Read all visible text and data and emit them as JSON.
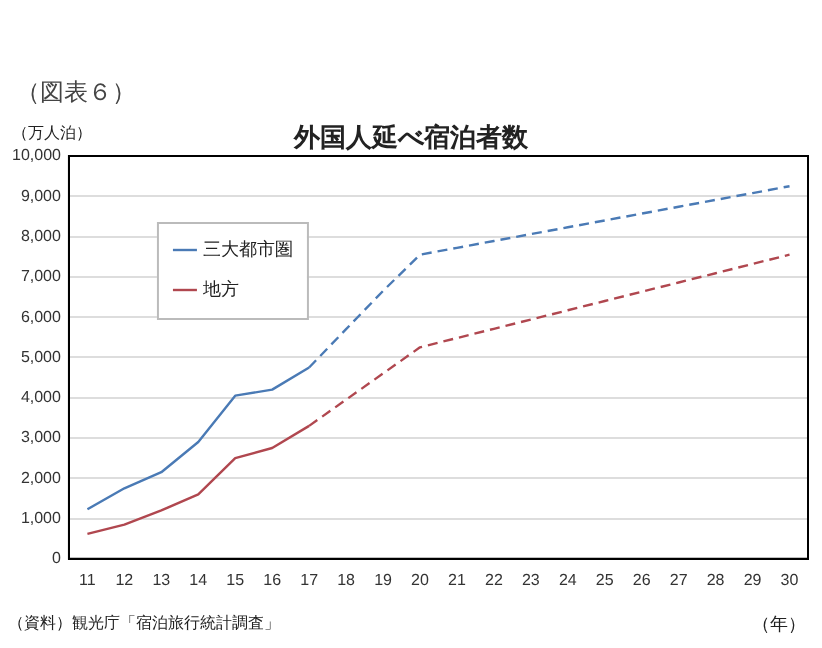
{
  "chart_data": {
    "type": "line",
    "title": "外国人延べ宿泊者数",
    "ylabel": "（万人泊）",
    "xlabel": "（年）",
    "annotations": [
      "（図表６）",
      "（資料）観光庁「宿泊旅行統計調査」"
    ],
    "categories": [
      "11",
      "12",
      "13",
      "14",
      "15",
      "16",
      "17",
      "18",
      "19",
      "20",
      "21",
      "22",
      "23",
      "24",
      "25",
      "26",
      "27",
      "28",
      "29",
      "30"
    ],
    "series": [
      {
        "name": "三大都市圏",
        "color": "#4a7ab5",
        "line_style": "solid",
        "values": [
          1230,
          1750,
          2150,
          2900,
          4050,
          4200,
          4750,
          null,
          null,
          null,
          null,
          null,
          null,
          null,
          null,
          null,
          null,
          null,
          null,
          null
        ]
      },
      {
        "name": "地方",
        "color": "#b0474f",
        "line_style": "solid",
        "values": [
          620,
          850,
          1200,
          1600,
          2500,
          2750,
          3300,
          null,
          null,
          null,
          null,
          null,
          null,
          null,
          null,
          null,
          null,
          null,
          null,
          null
        ]
      },
      {
        "color": "#4a7ab5",
        "line_style": "dashed",
        "values": [
          null,
          null,
          null,
          null,
          null,
          null,
          4750,
          5700,
          6650,
          7550,
          7720,
          7890,
          8060,
          8230,
          8400,
          8570,
          8740,
          8910,
          9080,
          9250
        ]
      },
      {
        "color": "#b0474f",
        "line_style": "dashed",
        "values": [
          null,
          null,
          null,
          null,
          null,
          null,
          3300,
          3950,
          4600,
          5250,
          5480,
          5710,
          5940,
          6170,
          6400,
          6630,
          6860,
          7090,
          7320,
          7550
        ]
      }
    ],
    "ylim": [
      0,
      10000
    ],
    "yticks": [
      0,
      {
        "value": 1000,
        "label": "1,000"
      },
      {
        "value": 2000,
        "label": "2,000"
      },
      {
        "value": 3000,
        "label": "3,000"
      },
      {
        "value": 4000,
        "label": "4,000"
      },
      {
        "value": 5000,
        "label": "5,000"
      },
      {
        "value": 6000,
        "label": "6,000"
      },
      {
        "value": 7000,
        "label": "7,000"
      },
      {
        "value": 8000,
        "label": "8,000"
      },
      {
        "value": 9000,
        "label": "9,000"
      },
      {
        "value": 10000,
        "label": "10,000"
      }
    ],
    "grid": "y",
    "legend": "top left",
    "marker": "none"
  }
}
